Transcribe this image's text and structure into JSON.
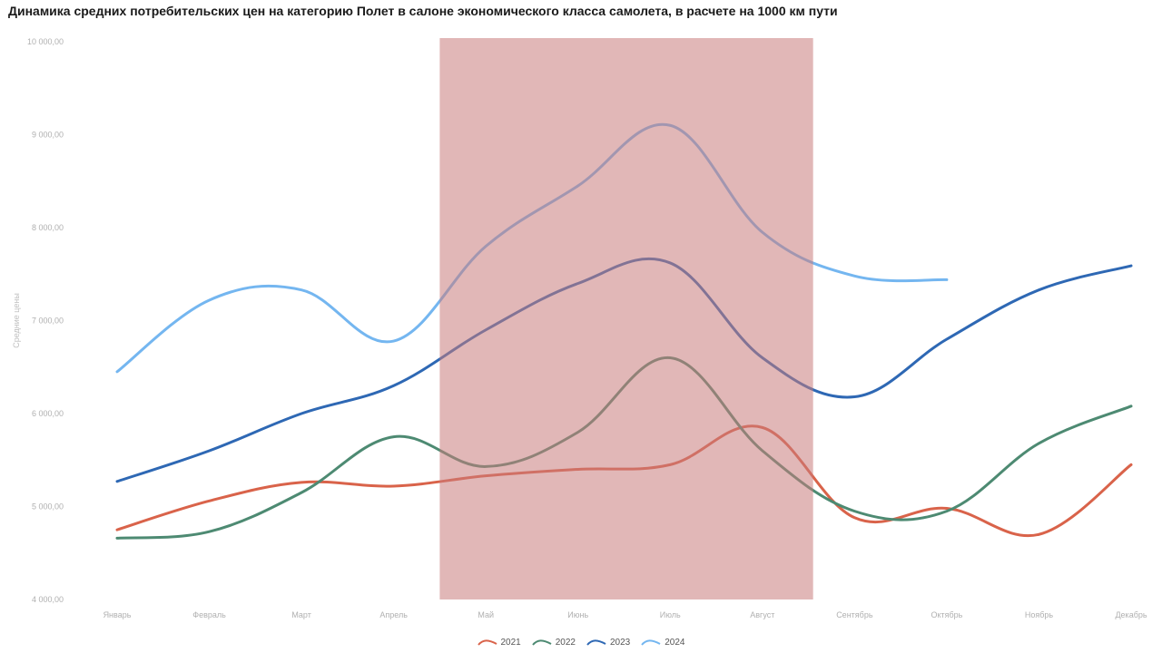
{
  "title": "Динамика средних потребительских цен на категорию Полет в салоне экономического класса самолета, в расчете на 1000 км пути",
  "chart_data": {
    "type": "line",
    "title": "Динамика средних потребительских цен на категорию Полет в салоне экономического класса самолета, в расчете на 1000 км пути",
    "xlabel": "",
    "ylabel": "Средние цены",
    "categories": [
      "Январь",
      "Февраль",
      "Март",
      "Апрель",
      "Май",
      "Июнь",
      "Июль",
      "Август",
      "Сентябрь",
      "Октябрь",
      "Ноябрь",
      "Декабрь"
    ],
    "ylim": [
      4000,
      10000
    ],
    "yticks": [
      4000,
      5000,
      6000,
      7000,
      8000,
      9000,
      10000
    ],
    "ytick_labels": [
      "4 000,00",
      "5 000,00",
      "6 000,00",
      "7 000,00",
      "8 000,00",
      "9 000,00",
      "10 000,00"
    ],
    "grid": false,
    "legend_position": "bottom-center",
    "highlight_band": {
      "from_index": 3.5,
      "to_index": 7.55,
      "color": "#c97b7b",
      "opacity": 0.55
    },
    "series": [
      {
        "name": "2021",
        "color": "#d9634a",
        "values": [
          4750,
          5060,
          5260,
          5220,
          5330,
          5400,
          5450,
          5850,
          4880,
          4980,
          4700,
          5450
        ]
      },
      {
        "name": "2022",
        "color": "#4d8a72",
        "values": [
          4660,
          4730,
          5150,
          5750,
          5430,
          5800,
          6600,
          5600,
          4950,
          4950,
          5680,
          6080
        ]
      },
      {
        "name": "2023",
        "color": "#2e68b4",
        "values": [
          5270,
          5600,
          6000,
          6300,
          6900,
          7400,
          7620,
          6600,
          6180,
          6800,
          7330,
          7590
        ]
      },
      {
        "name": "2024",
        "color": "#74b6f0",
        "values": [
          6450,
          7220,
          7330,
          6780,
          7800,
          8450,
          9100,
          7950,
          7480,
          7440,
          null,
          null
        ]
      }
    ]
  }
}
